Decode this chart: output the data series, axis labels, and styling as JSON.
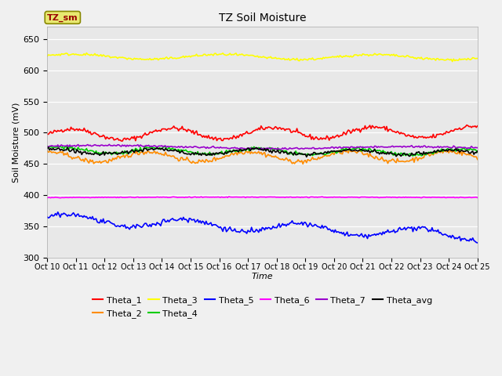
{
  "title": "TZ Soil Moisture",
  "xlabel": "Time",
  "ylabel": "Soil Moisture (mV)",
  "ylim": [
    300,
    670
  ],
  "yticks": [
    300,
    350,
    400,
    450,
    500,
    550,
    600,
    650
  ],
  "num_points": 361,
  "fig_bg": "#f0f0f0",
  "ax_bg": "#e8e8e8",
  "series_order": [
    "Theta_1",
    "Theta_2",
    "Theta_3",
    "Theta_4",
    "Theta_5",
    "Theta_6",
    "Theta_7",
    "Theta_avg"
  ],
  "series": {
    "Theta_1": {
      "color": "#ff0000",
      "base": 497,
      "amp": 9,
      "freq": 0.075,
      "phase": 0.0,
      "trend": 0.012,
      "noise": 1.8
    },
    "Theta_2": {
      "color": "#ff8c00",
      "base": 461,
      "amp": 8,
      "freq": 0.075,
      "phase": 1.5,
      "trend": 0.003,
      "noise": 1.8
    },
    "Theta_3": {
      "color": "#ffff00",
      "base": 622,
      "amp": 4,
      "freq": 0.05,
      "phase": 0.5,
      "trend": -0.003,
      "noise": 1.0
    },
    "Theta_4": {
      "color": "#00cc00",
      "base": 472,
      "amp": 5,
      "freq": 0.075,
      "phase": 0.8,
      "trend": -0.01,
      "noise": 1.5
    },
    "Theta_5": {
      "color": "#0000ff",
      "base": 362,
      "amp": 8,
      "freq": 0.065,
      "phase": 0.3,
      "trend": -0.075,
      "noise": 2.0
    },
    "Theta_6": {
      "color": "#ff00ff",
      "base": 396,
      "amp": 0.5,
      "freq": 0.01,
      "phase": 0.0,
      "trend": 0.001,
      "noise": 0.3
    },
    "Theta_7": {
      "color": "#9900cc",
      "base": 478,
      "amp": 2,
      "freq": 0.025,
      "phase": 0.2,
      "trend": -0.008,
      "noise": 0.8
    },
    "Theta_avg": {
      "color": "#000000",
      "base": 470,
      "amp": 4,
      "freq": 0.075,
      "phase": 1.2,
      "trend": -0.005,
      "noise": 1.5
    }
  },
  "xtick_labels": [
    "Oct 10",
    "Oct 11",
    "Oct 12",
    "Oct 13",
    "Oct 14",
    "Oct 15",
    "Oct 16",
    "Oct 17",
    "Oct 18",
    "Oct 19",
    "Oct 20",
    "Oct 21",
    "Oct 22",
    "Oct 23",
    "Oct 24",
    "Oct 25"
  ],
  "legend_box_bg": "#e8e870",
  "legend_box_edge": "#888800",
  "legend_text_color": "#990000",
  "legend_box_label": "TZ_sm",
  "legend_row1": [
    "Theta_1",
    "Theta_2",
    "Theta_3",
    "Theta_4",
    "Theta_5",
    "Theta_6"
  ],
  "legend_row2": [
    "Theta_7",
    "Theta_avg"
  ]
}
